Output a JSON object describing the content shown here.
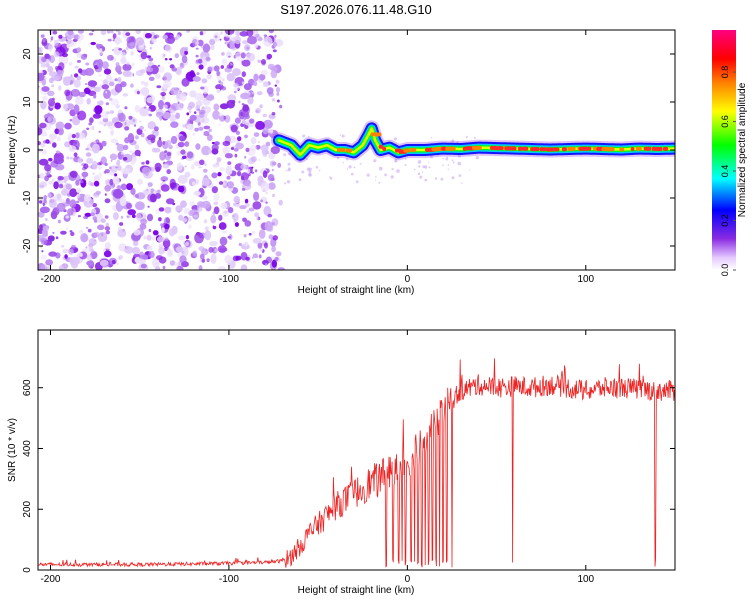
{
  "title": "S197.2026.076.11.48.G10",
  "chart_data": [
    {
      "type": "heatmap",
      "xlabel": "Height of straight line (km)",
      "ylabel": "Frequency (Hz)",
      "xlim": [
        -207,
        150
      ],
      "ylim": [
        -25,
        25
      ],
      "xticks": [
        -200,
        -100,
        0,
        100
      ],
      "xtick_labels": [
        "-200",
        "-100",
        "0",
        "100"
      ],
      "yticks": [
        -20,
        -10,
        0,
        10,
        20
      ],
      "ytick_labels": [
        "-20",
        "-10",
        "0",
        "10",
        "20"
      ],
      "noise_region": {
        "x_from": -207,
        "x_to": -72,
        "y_from": -25,
        "y_to": 25,
        "amplitude_range": [
          0.0,
          0.15
        ]
      },
      "signal_track": {
        "x": [
          -72,
          -65,
          -60,
          -55,
          -50,
          -45,
          -40,
          -35,
          -30,
          -25,
          -22,
          -20,
          -18,
          -15,
          -10,
          -5,
          0,
          10,
          20,
          30,
          40,
          50,
          60,
          70,
          80,
          90,
          100,
          110,
          120,
          130,
          140,
          150
        ],
        "freq": [
          2,
          1,
          -1,
          1,
          0.5,
          1,
          0,
          0,
          -0.5,
          1,
          3,
          4.5,
          2,
          0,
          0.5,
          -0.5,
          0,
          0,
          0.3,
          0.2,
          0.5,
          0.4,
          0.3,
          0.2,
          0.1,
          0.2,
          0.3,
          0.2,
          0.1,
          0.3,
          0.2,
          0.3
        ],
        "peak_amplitude": [
          0.7,
          0.6,
          0.5,
          0.6,
          0.7,
          0.6,
          0.7,
          0.8,
          0.7,
          0.6,
          0.6,
          0.6,
          0.6,
          0.7,
          0.7,
          0.8,
          0.9,
          0.9,
          0.9,
          0.95,
          0.9,
          0.9,
          0.95,
          0.9,
          0.95,
          0.9,
          0.95,
          0.95,
          0.9,
          0.95,
          0.9,
          0.9
        ]
      },
      "colorbar": {
        "label": "Normalized spectral amplitude",
        "range": [
          0.0,
          0.97
        ],
        "ticks": [
          0.0,
          0.2,
          0.4,
          0.6,
          0.8
        ],
        "tick_labels": [
          "0.0",
          "0.2",
          "0.4",
          "0.6",
          "0.8"
        ],
        "colors": [
          "#ffffff",
          "#8a2be2",
          "#0000ff",
          "#00ffff",
          "#00ff00",
          "#ffff00",
          "#ff8000",
          "#ff0000",
          "#ff0080"
        ]
      }
    },
    {
      "type": "line",
      "xlabel": "Height of straight line (km)",
      "ylabel": "SNR (10 * v/v)",
      "xlim": [
        -207,
        150
      ],
      "ylim": [
        0,
        790
      ],
      "xticks": [
        -200,
        -100,
        0,
        100
      ],
      "xtick_labels": [
        "-200",
        "-100",
        "0",
        "100"
      ],
      "yticks": [
        0,
        200,
        400,
        600
      ],
      "ytick_labels": [
        "0",
        "200",
        "400",
        "600"
      ],
      "series": [
        {
          "name": "SNR",
          "color": "#ee2222",
          "x": [
            -207,
            -180,
            -150,
            -120,
            -100,
            -80,
            -70,
            -65,
            -60,
            -55,
            -50,
            -45,
            -40,
            -35,
            -30,
            -25,
            -20,
            -15,
            -10,
            -5,
            0,
            5,
            10,
            15,
            20,
            25,
            30,
            40,
            50,
            60,
            70,
            80,
            90,
            100,
            110,
            120,
            130,
            140,
            150
          ],
          "values": [
            18,
            18,
            18,
            20,
            22,
            25,
            30,
            45,
            80,
            120,
            150,
            180,
            210,
            230,
            250,
            270,
            290,
            300,
            320,
            330,
            360,
            390,
            430,
            480,
            520,
            560,
            590,
            610,
            600,
            605,
            600,
            610,
            600,
            590,
            600,
            600,
            595,
            590,
            590
          ]
        }
      ],
      "dropouts_x": [
        -12,
        -8,
        -5,
        -3,
        -1,
        2,
        4,
        6,
        8,
        10,
        12,
        14,
        16,
        18,
        20,
        22,
        25,
        59,
        139
      ]
    }
  ]
}
